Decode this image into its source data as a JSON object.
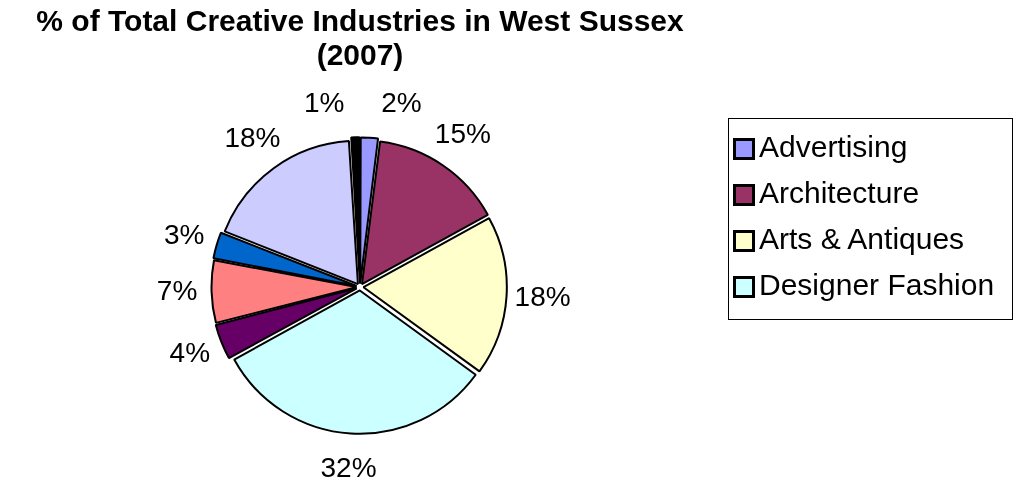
{
  "chart_data": {
    "type": "pie",
    "title": "% of Total Creative Industries in West Sussex (2007)",
    "categories": [
      "Advertising",
      "Architecture",
      "Arts & Antiques",
      "Designer Fashion",
      null,
      null,
      null,
      null,
      null
    ],
    "values": [
      2,
      15,
      18,
      32,
      4,
      7,
      3,
      18,
      1
    ],
    "colors": [
      "#9999ff",
      "#993366",
      "#ffffcc",
      "#ccffff",
      "#660066",
      "#ff8080",
      "#0066cc",
      "#ccccff",
      "#000000"
    ],
    "value_labels": [
      "2%",
      "15%",
      "18%",
      "32%",
      "4%",
      "7%",
      "3%",
      "18%",
      "1%"
    ],
    "legend": "right"
  }
}
